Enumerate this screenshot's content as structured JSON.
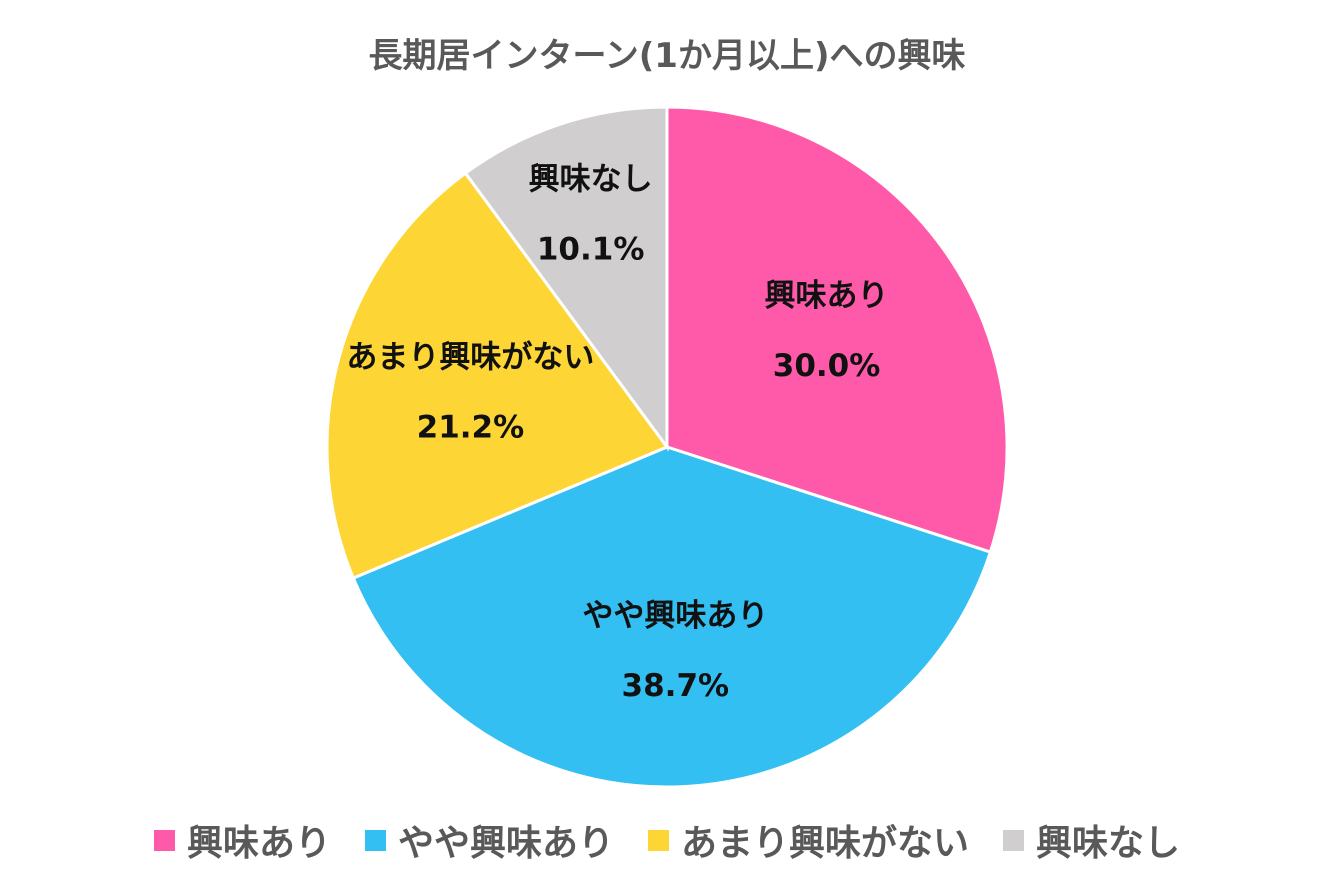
{
  "chart_data": {
    "type": "pie",
    "title": "長期居インターン(1か月以上)への興味",
    "slices": [
      {
        "label": "興味あり",
        "value": 30.0,
        "display": "30.0%",
        "color": "#ff5aaa"
      },
      {
        "label": "やや興味あり",
        "value": 38.7,
        "display": "38.7%",
        "color": "#33bff2"
      },
      {
        "label": "あまり興味がない",
        "value": 21.2,
        "display": "21.2%",
        "color": "#fdd535"
      },
      {
        "label": "興味なし",
        "value": 10.1,
        "display": "10.1%",
        "color": "#d0cecf"
      }
    ],
    "start_angle": "12 o'clock",
    "direction": "clockwise",
    "legend_position": "bottom"
  }
}
